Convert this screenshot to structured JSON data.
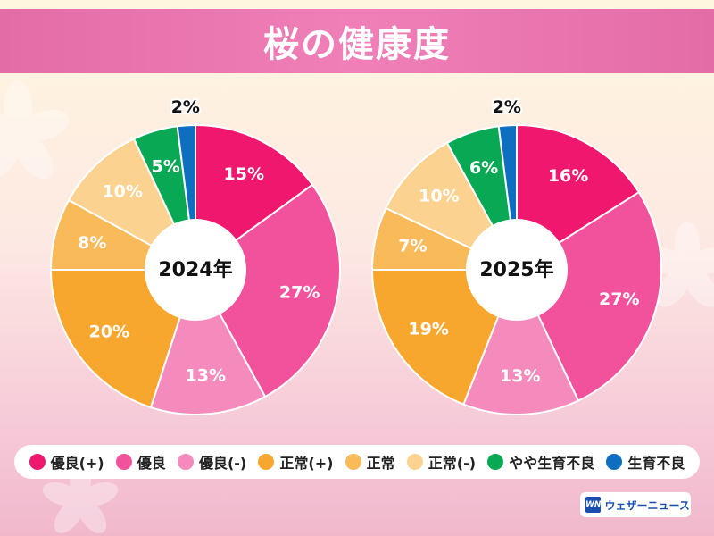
{
  "header": {
    "title": "桜の健康度"
  },
  "colors": {
    "優良(+)": "#f0186e",
    "優良": "#f2529b",
    "優良(-)": "#f58bbd",
    "正常(+)": "#f8a72e",
    "正常": "#f9ba5a",
    "正常(-)": "#fbd28f",
    "やや生育不良": "#08a854",
    "生育不良": "#0e6fc1"
  },
  "legend": [
    {
      "label": "優良(+)",
      "key": "優良(+)"
    },
    {
      "label": "優良",
      "key": "優良"
    },
    {
      "label": "優良(-)",
      "key": "優良(-)"
    },
    {
      "label": "正常(+)",
      "key": "正常(+)"
    },
    {
      "label": "正常",
      "key": "正常"
    },
    {
      "label": "正常(-)",
      "key": "正常(-)"
    },
    {
      "label": "やや生育不良",
      "key": "やや生育不良"
    },
    {
      "label": "生育不良",
      "key": "生育不良"
    }
  ],
  "chart_data": [
    {
      "type": "pie",
      "title": "",
      "center_label": "2024年",
      "categories": [
        "優良(+)",
        "優良",
        "優良(-)",
        "正常(+)",
        "正常",
        "正常(-)",
        "やや生育不良",
        "生育不良"
      ],
      "values": [
        15,
        27,
        13,
        20,
        8,
        10,
        5,
        2
      ],
      "labels": [
        "15%",
        "27%",
        "13%",
        "20%",
        "8%",
        "10%",
        "5%",
        "2%"
      ]
    },
    {
      "type": "pie",
      "title": "",
      "center_label": "2025年",
      "categories": [
        "優良(+)",
        "優良",
        "優良(-)",
        "正常(+)",
        "正常",
        "正常(-)",
        "やや生育不良",
        "生育不良"
      ],
      "values": [
        16,
        27,
        13,
        19,
        7,
        10,
        6,
        2
      ],
      "labels": [
        "16%",
        "27%",
        "13%",
        "19%",
        "7%",
        "10%",
        "6%",
        "2%"
      ]
    }
  ],
  "logo": {
    "mark": "WN",
    "text": "ウェザーニュース"
  }
}
